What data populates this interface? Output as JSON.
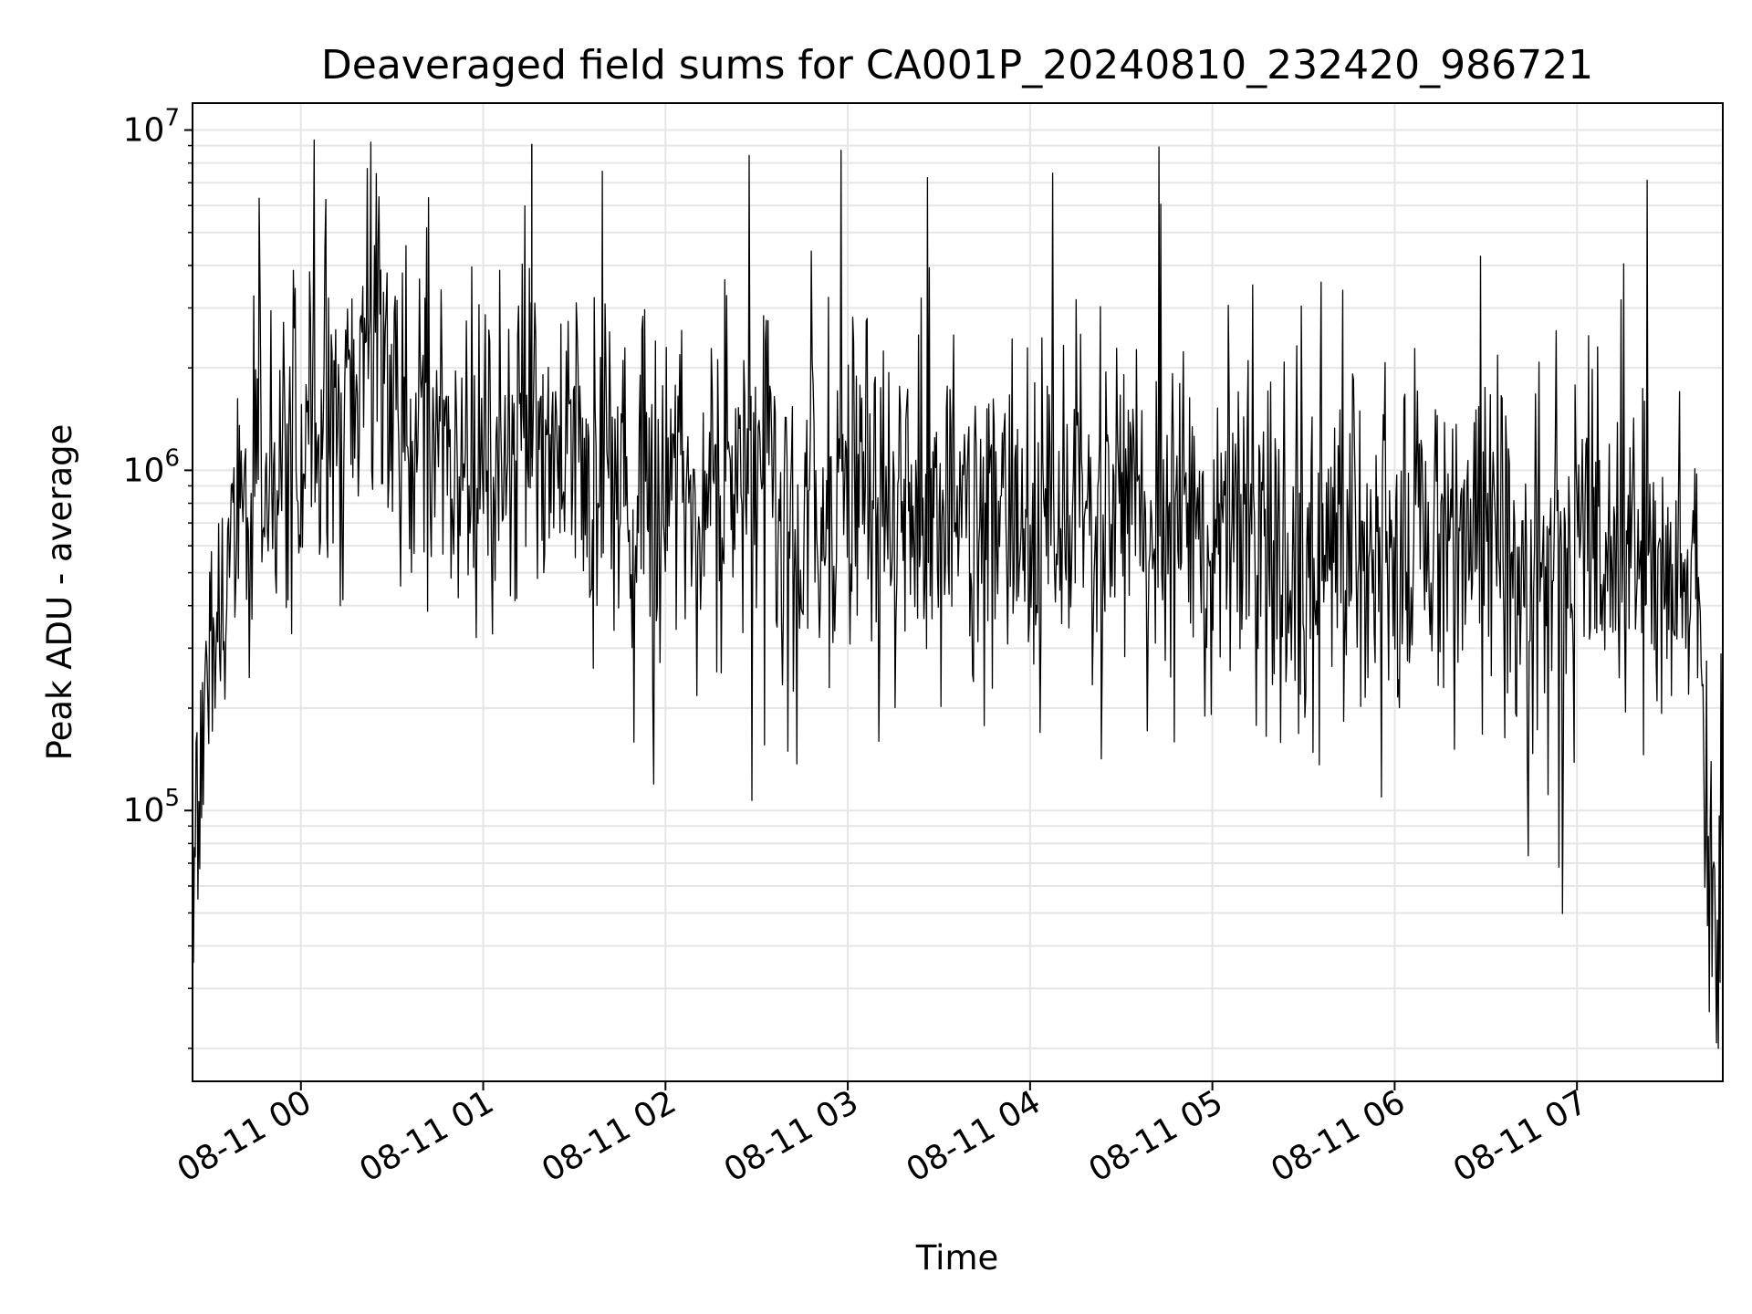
{
  "chart_data": {
    "type": "line",
    "title": "Deaveraged field sums for CA001P_20240810_232420_986721",
    "xlabel": "Time",
    "ylabel": "Peak ADU - average",
    "x_scale": "time",
    "y_scale": "log",
    "xlim": [
      "2024-08-10 23:24:20",
      "2024-08-11 07:48:00"
    ],
    "ylim": [
      16000,
      12000000
    ],
    "x_tick_labels": [
      "08-11 00",
      "08-11 01",
      "08-11 02",
      "08-11 03",
      "08-11 04",
      "08-11 05",
      "08-11 06",
      "08-11 07"
    ],
    "y_tick_labels": [
      {
        "base": "10",
        "exp": "5"
      },
      {
        "base": "10",
        "exp": "6"
      },
      {
        "base": "10",
        "exp": "7"
      }
    ],
    "grid": true,
    "legend": "none",
    "line_color": "#000000",
    "grid_color": "#e5e5e5",
    "series": [
      {
        "x": [
          "2024-08-10 23:24:20",
          "2024-08-10 23:26:00",
          "2024-08-10 23:28:00",
          "2024-08-10 23:30:00",
          "2024-08-10 23:33:00",
          "2024-08-10 23:36:00",
          "2024-08-10 23:40:00",
          "2024-08-10 23:45:00",
          "2024-08-10 23:50:00",
          "2024-08-10 23:55:00",
          "2024-08-11 00:00:00",
          "2024-08-11 00:05:00",
          "2024-08-11 00:10:00",
          "2024-08-11 00:15:00",
          "2024-08-11 00:20:00",
          "2024-08-11 00:25:00",
          "2024-08-11 00:30:00",
          "2024-08-11 00:35:00",
          "2024-08-11 00:40:00",
          "2024-08-11 00:45:00",
          "2024-08-11 00:50:00",
          "2024-08-11 00:55:00",
          "2024-08-11 01:00:00",
          "2024-08-11 01:10:00",
          "2024-08-11 01:20:00",
          "2024-08-11 01:30:00",
          "2024-08-11 01:45:00",
          "2024-08-11 02:00:00",
          "2024-08-11 02:15:00",
          "2024-08-11 02:30:00",
          "2024-08-11 02:45:00",
          "2024-08-11 03:00:00",
          "2024-08-11 03:15:00",
          "2024-08-11 03:30:00",
          "2024-08-11 03:45:00",
          "2024-08-11 04:00:00",
          "2024-08-11 04:15:00",
          "2024-08-11 04:30:00",
          "2024-08-11 04:45:00",
          "2024-08-11 05:00:00",
          "2024-08-11 05:15:00",
          "2024-08-11 05:30:00",
          "2024-08-11 05:45:00",
          "2024-08-11 06:00:00",
          "2024-08-11 06:15:00",
          "2024-08-11 06:30:00",
          "2024-08-11 06:45:00",
          "2024-08-11 07:00:00",
          "2024-08-11 07:10:00",
          "2024-08-11 07:20:00",
          "2024-08-11 07:30:00",
          "2024-08-11 07:35:00",
          "2024-08-11 07:38:00",
          "2024-08-11 07:40:00",
          "2024-08-11 07:42:00",
          "2024-08-11 07:44:00",
          "2024-08-11 07:46:00",
          "2024-08-11 07:48:00"
        ],
        "y": [
          60000,
          120000,
          180000,
          250000,
          350000,
          500000,
          700000,
          900000,
          1000000,
          1100000,
          1150000,
          1250000,
          1350000,
          1500000,
          1700000,
          1800000,
          1700000,
          1600000,
          1500000,
          1350000,
          1200000,
          1150000,
          1200000,
          1150000,
          1050000,
          1000000,
          900000,
          850000,
          850000,
          850000,
          800000,
          780000,
          760000,
          760000,
          740000,
          740000,
          720000,
          700000,
          680000,
          660000,
          620000,
          560000,
          560000,
          600000,
          620000,
          620000,
          600000,
          580000,
          560000,
          560000,
          560000,
          550000,
          500000,
          350000,
          150000,
          60000,
          40000,
          70000
        ],
        "max": [
          9100000
        ]
      }
    ]
  }
}
